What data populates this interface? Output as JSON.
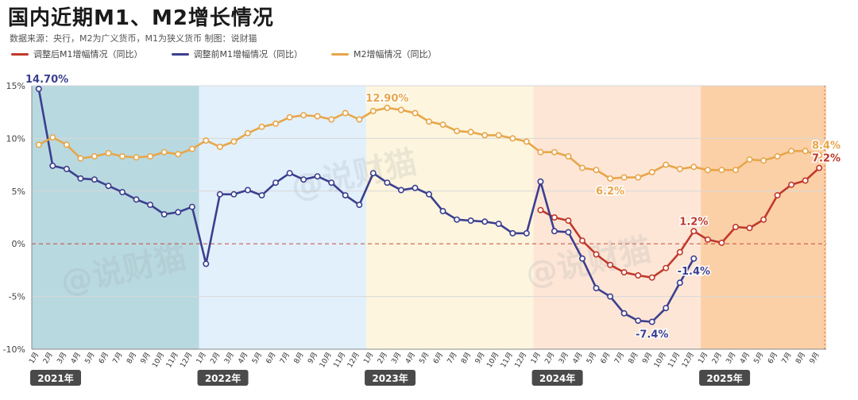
{
  "title": "国内近期M1、M2增长情况",
  "subtitle": "数据来源：央行，M2为广义货币，M1为狭义货币    制图：说财猫",
  "watermark": "@说财猫",
  "chart_data": {
    "type": "line",
    "title": "国内近期M1、M2增长情况",
    "y_ticks": [
      "15%",
      "10%",
      "5%",
      "0%",
      "-5%",
      "-10%"
    ],
    "ylim": [
      -10,
      15
    ],
    "grid": true,
    "legend_position": "top-left",
    "months": [
      "1月",
      "2月",
      "3月",
      "4月",
      "5月",
      "6月",
      "7月",
      "8月",
      "9月",
      "10月",
      "11月",
      "12月",
      "1月",
      "2月",
      "3月",
      "4月",
      "5月",
      "6月",
      "7月",
      "8月",
      "9月",
      "10月",
      "11月",
      "12月",
      "1月",
      "2月",
      "3月",
      "4月",
      "5月",
      "6月",
      "7月",
      "8月",
      "9月",
      "10月",
      "11月",
      "12月",
      "1月",
      "2月",
      "3月",
      "4月",
      "5月",
      "6月",
      "7月",
      "8月",
      "9月",
      "10月",
      "11月",
      "12月",
      "1月",
      "2月",
      "3月",
      "4月",
      "5月",
      "6月",
      "7月",
      "8月",
      "9月"
    ],
    "years": [
      {
        "label": "2021年",
        "start": 0,
        "end": 11,
        "color": "#b9d9e0"
      },
      {
        "label": "2022年",
        "start": 12,
        "end": 23,
        "color": "#e2f0fb"
      },
      {
        "label": "2023年",
        "start": 24,
        "end": 35,
        "color": "#fdf5de"
      },
      {
        "label": "2024年",
        "start": 36,
        "end": 47,
        "color": "#fde6d6"
      },
      {
        "label": "2025年",
        "start": 48,
        "end": 56,
        "color": "#fbd0a7"
      }
    ],
    "series": [
      {
        "name": "调整后M1增幅情况（同比）",
        "color": "#c0392b",
        "start": 36,
        "values": [
          3.2,
          2.5,
          2.2,
          0.3,
          -1.0,
          -2.0,
          -2.7,
          -3.0,
          -3.2,
          -2.3,
          -0.8,
          1.2,
          0.4,
          0.1,
          1.6,
          1.5,
          2.3,
          4.6,
          5.6,
          6.0,
          7.2
        ]
      },
      {
        "name": "调整前M1增幅情况（同比）",
        "color": "#3b3f8f",
        "start": 0,
        "values": [
          14.7,
          7.4,
          7.1,
          6.2,
          6.1,
          5.5,
          4.9,
          4.2,
          3.7,
          2.8,
          3.0,
          3.5,
          -1.9,
          4.7,
          4.7,
          5.1,
          4.6,
          5.8,
          6.7,
          6.1,
          6.4,
          5.8,
          4.6,
          3.7,
          6.7,
          5.8,
          5.1,
          5.3,
          4.7,
          3.1,
          2.3,
          2.2,
          2.1,
          1.9,
          1.0,
          1.0,
          5.9,
          1.2,
          1.1,
          -1.4,
          -4.2,
          -5.0,
          -6.6,
          -7.3,
          -7.4,
          -6.1,
          -3.7,
          -1.4
        ]
      },
      {
        "name": "M2增幅情况（同比）",
        "color": "#e7a64a",
        "start": 0,
        "values": [
          9.4,
          10.1,
          9.4,
          8.1,
          8.3,
          8.6,
          8.3,
          8.2,
          8.3,
          8.7,
          8.5,
          9.0,
          9.8,
          9.2,
          9.7,
          10.5,
          11.1,
          11.4,
          12.0,
          12.2,
          12.1,
          11.8,
          12.4,
          11.8,
          12.6,
          12.9,
          12.7,
          12.4,
          11.6,
          11.3,
          10.7,
          10.6,
          10.3,
          10.3,
          10.0,
          9.7,
          8.7,
          8.7,
          8.3,
          7.2,
          7.0,
          6.2,
          6.3,
          6.3,
          6.8,
          7.5,
          7.1,
          7.3,
          7.0,
          7.0,
          7.0,
          8.0,
          7.9,
          8.3,
          8.8,
          8.8,
          8.4
        ]
      }
    ],
    "annotations": [
      {
        "text": "14.70%",
        "series": 1,
        "index": 0,
        "color": "#3b3f8f",
        "pos": "above"
      },
      {
        "text": "12.90%",
        "series": 2,
        "index": 25,
        "color": "#e7a64a",
        "pos": "above"
      },
      {
        "text": "6.2%",
        "series": 2,
        "index": 41,
        "color": "#e7a64a",
        "pos": "below"
      },
      {
        "text": "1.2%",
        "series": 0,
        "index": 11,
        "color": "#c0392b",
        "pos": "above"
      },
      {
        "text": "-1.4%",
        "series": 1,
        "index": 47,
        "color": "#3b3f8f",
        "pos": "below"
      },
      {
        "text": "-7.4%",
        "series": 1,
        "index": 44,
        "color": "#3b3f8f",
        "pos": "below"
      },
      {
        "text": "7.2%",
        "series": 0,
        "index": 20,
        "color": "#c0392b",
        "pos": "above"
      },
      {
        "text": "8.4%",
        "series": 2,
        "index": 56,
        "color": "#e7a64a",
        "pos": "above"
      }
    ]
  }
}
